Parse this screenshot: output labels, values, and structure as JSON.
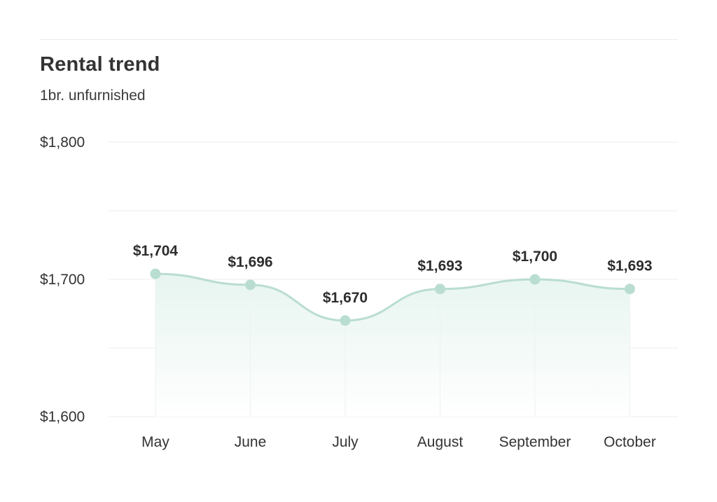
{
  "header": {
    "title": "Rental trend",
    "subtitle": "1br. unfurnished"
  },
  "colors": {
    "line": "#b9ddd1",
    "point": "#b9ddd1",
    "area_top": "#e6f4ef",
    "area_bottom": "#ffffff",
    "grid": "#ececec",
    "vline": "#eef2f0"
  },
  "chart_data": {
    "type": "area",
    "title": "Rental trend",
    "subtitle": "1br. unfurnished",
    "xlabel": "",
    "ylabel": "",
    "categories": [
      "May",
      "June",
      "July",
      "August",
      "September",
      "October"
    ],
    "series": [
      {
        "values": [
          1704,
          1696,
          1670,
          1693,
          1700,
          1693
        ],
        "labels": [
          "$1,704",
          "$1,696",
          "$1,670",
          "$1,693",
          "$1,700",
          "$1,693"
        ]
      }
    ],
    "ylim": [
      1600,
      1800
    ],
    "yticks": [
      1600,
      1700,
      1800
    ],
    "ytick_labels": [
      "$1,600",
      "$1,700",
      "$1,800"
    ],
    "grid": true,
    "smooth": true,
    "legend": "none"
  }
}
